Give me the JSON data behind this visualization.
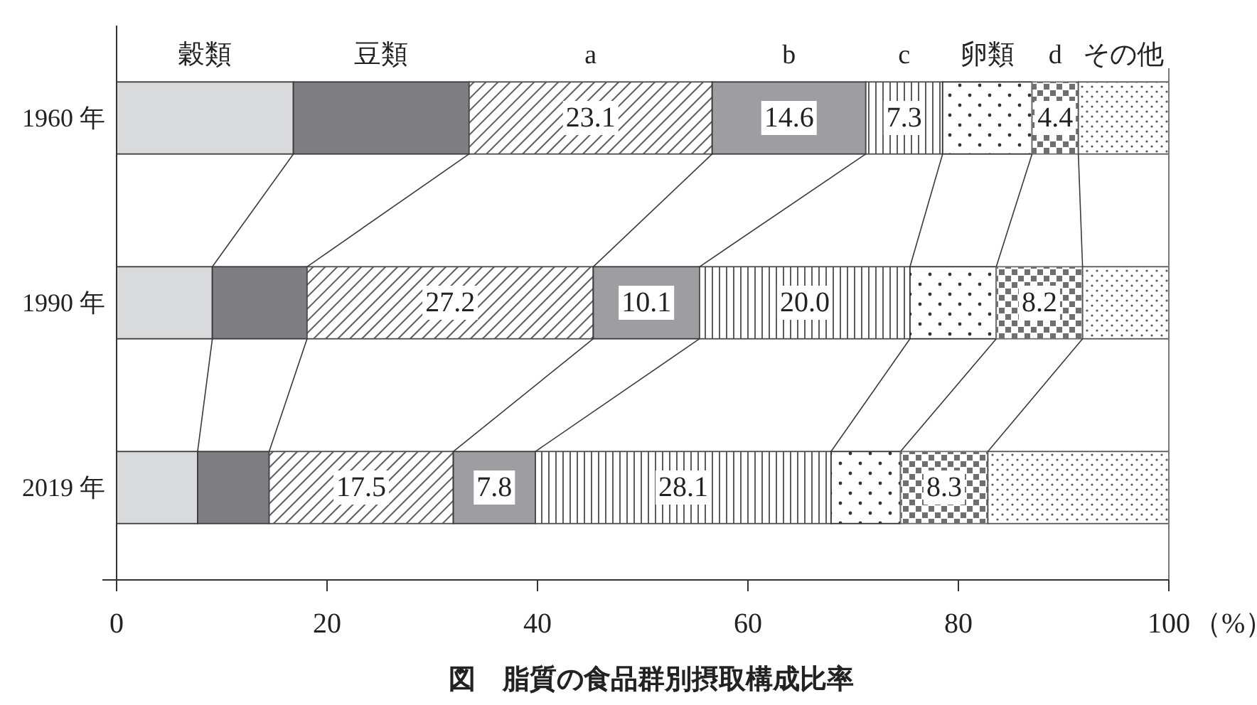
{
  "chart_data": {
    "type": "bar",
    "orientation": "horizontal",
    "stacked": true,
    "title": "図　脂質の食品群別摂取構成比率",
    "xlabel": "（%）",
    "categories": [
      "1960 年",
      "1990 年",
      "2019 年"
    ],
    "series": [
      {
        "name": "穀類",
        "color": "#d9dadc",
        "values": [
          16.8,
          9.1,
          7.7
        ]
      },
      {
        "name": "豆類",
        "color": "#7f7f83",
        "values": [
          16.7,
          9.0,
          6.8
        ]
      },
      {
        "name": "a",
        "color": "#4a4a4a",
        "values": [
          23.1,
          27.2,
          17.5
        ],
        "value_labels": [
          "23.1",
          "27.2",
          "17.5"
        ]
      },
      {
        "name": "b",
        "color": "#9e9ea2",
        "values": [
          14.6,
          10.1,
          7.8
        ],
        "value_labels": [
          "14.6",
          "10.1",
          "7.8"
        ]
      },
      {
        "name": "c",
        "color": "#4a4a4a",
        "values": [
          7.3,
          20.0,
          28.1
        ],
        "value_labels": [
          "7.3",
          "20.0",
          "28.1"
        ]
      },
      {
        "name": "卵類",
        "color": "#333333",
        "values": [
          8.5,
          8.2,
          6.6
        ]
      },
      {
        "name": "d",
        "color": "#6f6f72",
        "values": [
          4.4,
          8.2,
          8.3
        ],
        "value_labels": [
          "4.4",
          "8.2",
          "8.3"
        ]
      },
      {
        "name": "その他",
        "color": "#555555",
        "values": [
          8.6,
          8.2,
          17.2
        ]
      }
    ],
    "xlim": [
      0,
      100
    ],
    "xticks": [
      0,
      20,
      40,
      60,
      80,
      100
    ]
  }
}
